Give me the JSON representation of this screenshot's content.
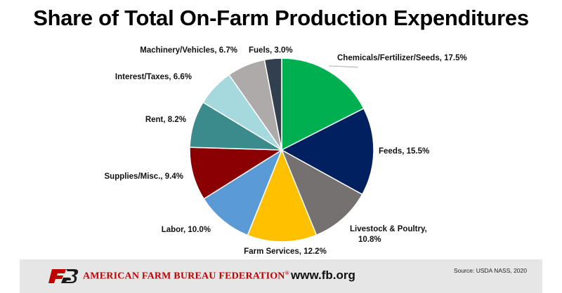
{
  "title": "Share of Total On-Farm Production Expenditures",
  "chart_data": {
    "type": "pie",
    "title": "Share of Total On-Farm Production Expenditures",
    "start_angle_deg": 0,
    "direction": "clockwise",
    "slices": [
      {
        "label": "Chemicals/Fertilizer/Seeds",
        "value": 17.5,
        "text": "Chemicals/Fertilizer/Seeds, 17.5%",
        "color": "#00b050"
      },
      {
        "label": "Feeds",
        "value": 15.5,
        "text": "Feeds, 15.5%",
        "color": "#002060"
      },
      {
        "label": "Livestock & Poultry",
        "value": 10.8,
        "text": "Livestock & Poultry, 10.8%",
        "color": "#767171"
      },
      {
        "label": "Farm Services",
        "value": 12.2,
        "text": "Farm Services, 12.2%",
        "color": "#ffc000"
      },
      {
        "label": "Labor",
        "value": 10.0,
        "text": "Labor, 10.0%",
        "color": "#5b9bd5"
      },
      {
        "label": "Supplies/Misc.",
        "value": 9.4,
        "text": "Supplies/Misc., 9.4%",
        "color": "#8b0000"
      },
      {
        "label": "Rent",
        "value": 8.2,
        "text": "Rent, 8.2%",
        "color": "#3b8a8c"
      },
      {
        "label": "Interest/Taxes",
        "value": 6.6,
        "text": "Interest/Taxes, 6.6%",
        "color": "#a6d9de"
      },
      {
        "label": "Machinery/Vehicles",
        "value": 6.7,
        "text": "Machinery/Vehicles, 6.7%",
        "color": "#aeaaaa"
      },
      {
        "label": "Fuels",
        "value": 3.0,
        "text": "Fuels, 3.0%",
        "color": "#323f4f"
      }
    ]
  },
  "footer": {
    "org_name": "AMERICAN FARM BUREAU FEDERATION",
    "registered": "®",
    "url": "www.fb.org",
    "source": "Source: USDA NASS, 2020",
    "logo_text": "FB"
  }
}
